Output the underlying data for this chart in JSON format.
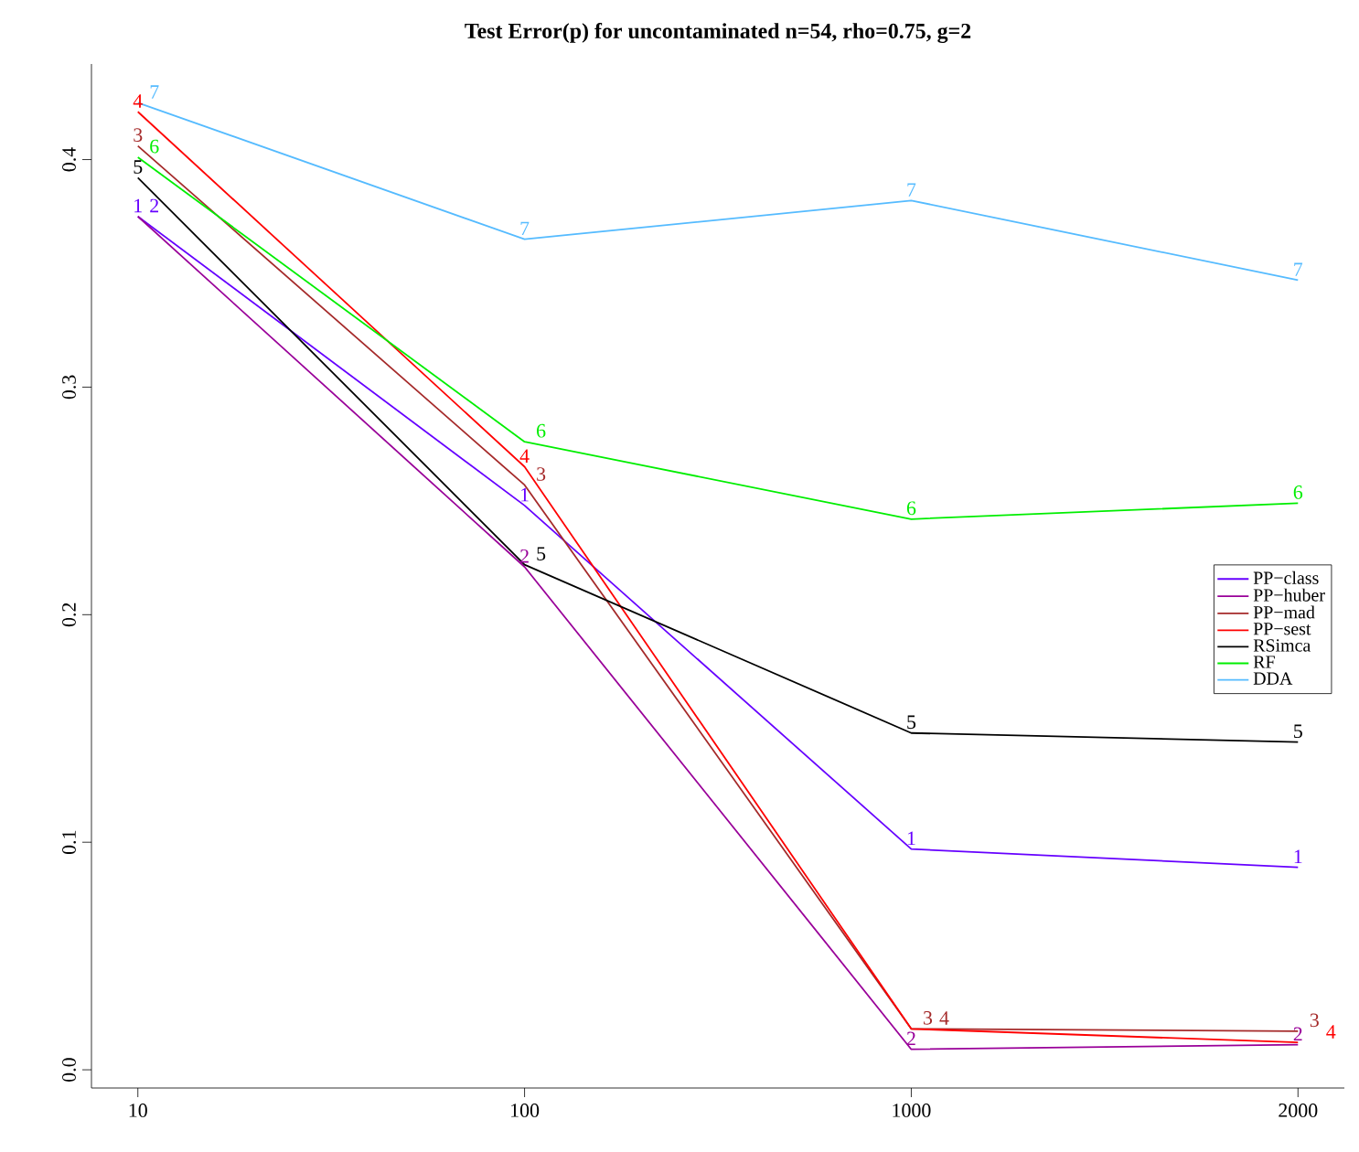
{
  "chart_data": {
    "type": "line",
    "title": "Test Error(p) for uncontaminated n=54, rho=0.75, g=2",
    "categories": [
      "10",
      "100",
      "1000",
      "2000"
    ],
    "ylim": [
      -0.008,
      0.442
    ],
    "yticks": [
      {
        "value": 0,
        "label": "0.0"
      },
      0.1,
      0.2,
      0.3,
      0.4
    ],
    "legend": "right",
    "grid": false,
    "marker": "none",
    "line_style": "solid",
    "series": [
      {
        "name": "PP−class",
        "color": "#6600ff",
        "values": [
          0.375,
          0.248,
          0.097,
          0.089
        ]
      },
      {
        "name": "PP−huber",
        "color": "#990099",
        "values": [
          0.375,
          0.221,
          0.009,
          0.011
        ]
      },
      {
        "name": "PP−mad",
        "color": "#a52a2a",
        "values": [
          0.406,
          0.257,
          0.018,
          0.017
        ]
      },
      {
        "name": "PP−sest",
        "color": "#ff0000",
        "values": [
          0.421,
          0.265,
          0.018,
          0.012
        ]
      },
      {
        "name": "RSimca",
        "color": "#000000",
        "values": [
          0.392,
          0.222,
          0.148,
          0.144
        ]
      },
      {
        "name": "RF",
        "color": "#00ee00",
        "values": [
          0.401,
          0.276,
          0.242,
          0.249
        ]
      },
      {
        "name": "DDA",
        "color": "#55bbff",
        "values": [
          0.425,
          0.365,
          0.382,
          0.347
        ]
      }
    ],
    "annotations": [
      {
        "text": "1",
        "x": "10",
        "y": 0.375
      },
      {
        "text": "1",
        "x": "100",
        "y": 0.248
      },
      {
        "text": "1",
        "x": "1000",
        "y": 0.097
      },
      {
        "text": "1",
        "x": "2000",
        "y": 0.089
      },
      {
        "text": "2",
        "x": "10",
        "y": 0.375
      },
      {
        "text": "2",
        "x": "100",
        "y": 0.221
      },
      {
        "text": "2",
        "x": "1000",
        "y": 0.009
      },
      {
        "text": "2",
        "x": "2000",
        "y": 0.011
      },
      {
        "text": "3",
        "x": "10",
        "y": 0.406
      },
      {
        "text": "3",
        "x": "100",
        "y": 0.257
      },
      {
        "text": "3",
        "x": "1000",
        "y": 0.018
      },
      {
        "text": "3",
        "x": "2000",
        "y": 0.017
      },
      {
        "text": "4",
        "x": "10",
        "y": 0.421
      },
      {
        "text": "4",
        "x": "100",
        "y": 0.265
      },
      {
        "text": "4",
        "x": "1000",
        "y": 0.018
      },
      {
        "text": "4",
        "x": "2000",
        "y": 0.012
      },
      {
        "text": "5",
        "x": "10",
        "y": 0.392
      },
      {
        "text": "5",
        "x": "100",
        "y": 0.222
      },
      {
        "text": "5",
        "x": "1000",
        "y": 0.148
      },
      {
        "text": "5",
        "x": "2000",
        "y": 0.144
      },
      {
        "text": "6",
        "x": "10",
        "y": 0.401
      },
      {
        "text": "6",
        "x": "100",
        "y": 0.276
      },
      {
        "text": "6",
        "x": "1000",
        "y": 0.242
      },
      {
        "text": "6",
        "x": "2000",
        "y": 0.249
      },
      {
        "text": "7",
        "x": "10",
        "y": 0.425
      },
      {
        "text": "7",
        "x": "100",
        "y": 0.365
      },
      {
        "text": "7",
        "x": "1000",
        "y": 0.382
      },
      {
        "text": "7",
        "x": "2000",
        "y": 0.347
      }
    ]
  }
}
